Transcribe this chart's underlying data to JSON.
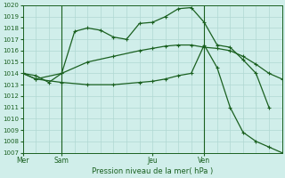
{
  "background_color": "#d0eeea",
  "grid_color": "#b0d8d2",
  "line_color": "#1a6020",
  "title": "Pression niveau de la mer( hPa )",
  "ylim": [
    1007,
    1020
  ],
  "yticks": [
    1007,
    1008,
    1009,
    1010,
    1011,
    1012,
    1013,
    1014,
    1015,
    1016,
    1017,
    1018,
    1019,
    1020
  ],
  "xlim": [
    0,
    20
  ],
  "xtick_positions": [
    0,
    3,
    10,
    14
  ],
  "xtick_labels": [
    "Mer",
    "Sam",
    "Jeu",
    "Ven"
  ],
  "vline_positions": [
    3,
    14
  ],
  "line1_x": [
    0,
    1,
    2,
    3,
    4,
    5,
    6,
    7,
    8,
    9,
    10,
    11,
    12,
    13,
    14,
    15,
    16,
    17,
    18,
    19
  ],
  "line1_y": [
    1014.0,
    1013.8,
    1013.2,
    1014.0,
    1017.7,
    1018.0,
    1017.8,
    1017.2,
    1017.0,
    1018.4,
    1018.5,
    1019.0,
    1019.7,
    1019.8,
    1018.5,
    1016.5,
    1016.3,
    1015.2,
    1014.0,
    1011.0
  ],
  "line2_x": [
    0,
    1,
    3,
    5,
    7,
    9,
    10,
    11,
    12,
    13,
    14,
    15,
    16,
    17,
    18,
    19,
    20
  ],
  "line2_y": [
    1014.0,
    1013.5,
    1014.0,
    1015.0,
    1015.5,
    1016.0,
    1016.2,
    1016.4,
    1016.5,
    1016.5,
    1016.3,
    1016.2,
    1016.0,
    1015.5,
    1014.8,
    1014.0,
    1013.5
  ],
  "line3_x": [
    0,
    1,
    3,
    5,
    7,
    9,
    10,
    11,
    12,
    13,
    14,
    15,
    16,
    17,
    18,
    19,
    20
  ],
  "line3_y": [
    1014.0,
    1013.5,
    1013.2,
    1013.0,
    1013.0,
    1013.2,
    1013.3,
    1013.5,
    1013.8,
    1014.0,
    1016.5,
    1014.5,
    1011.0,
    1008.8,
    1008.0,
    1007.5,
    1007.0
  ]
}
